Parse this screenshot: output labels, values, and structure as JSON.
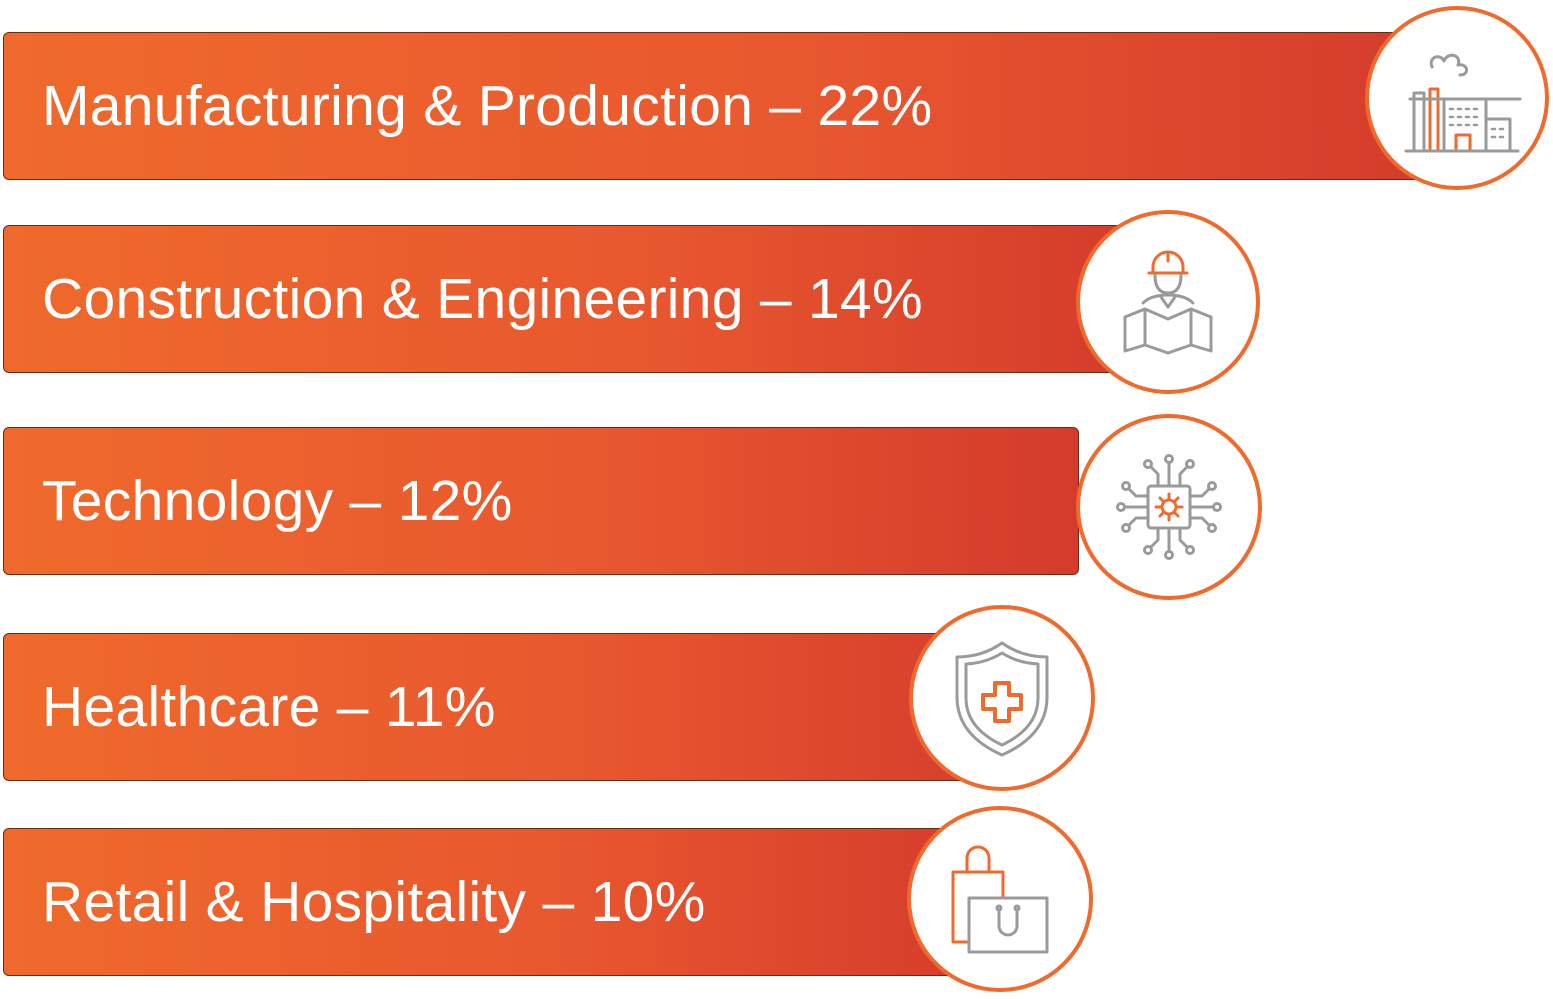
{
  "chart_data": {
    "type": "bar",
    "categories": [
      "Manufacturing & Production",
      "Construction & Engineering",
      "Technology",
      "Healthcare",
      "Retail & Hospitality"
    ],
    "values": [
      22,
      14,
      12,
      11,
      10
    ],
    "unit": "%",
    "labels": [
      "Manufacturing & Production – 22%",
      "Construction & Engineering – 14%",
      "Technology – 12%",
      "Healthcare – 11%",
      "Retail & Hospitality – 10%"
    ],
    "icons": [
      "factory-icon",
      "engineer-icon",
      "chip-icon",
      "medical-shield-icon",
      "shopping-bags-icon"
    ],
    "title": "",
    "xlabel": "",
    "ylabel": ""
  },
  "colors": {
    "bar_start": "#ef6a2c",
    "bar_end": "#d43b2c",
    "icon_gray": "#9a9a9a",
    "icon_accent": "#ef6a2c"
  }
}
